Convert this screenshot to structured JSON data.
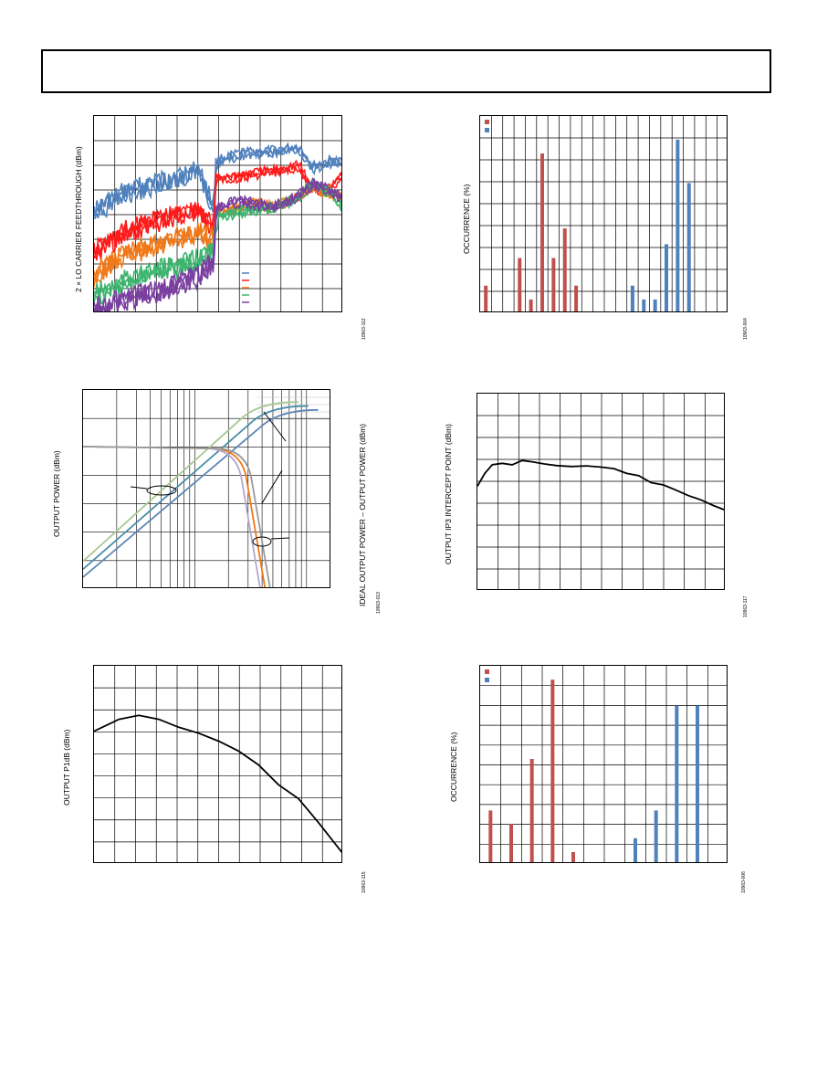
{
  "charts": {
    "lo_feedthrough": {
      "ylabel": "2 × LO CARRIER FEEDTHROUGH (dBm)",
      "fig_id": "10963-112"
    },
    "occurrence_top": {
      "ylabel": "OCCURRENCE (%)",
      "fig_id": "10963-004"
    },
    "output_power": {
      "ylabel_left": "OUTPUT POWER (dBm)",
      "ylabel_right": "IDEAL OUTPUT POWER – OUTPUT POWER (dBm)",
      "fig_id": "10963-013"
    },
    "oip3": {
      "ylabel": "OUTPUT IP3 INTERCEPT POINT (dBm)",
      "fig_id": "10963-117"
    },
    "p1db": {
      "ylabel": "OUTPUT P1dB (dBm)",
      "fig_id": "10963-115"
    },
    "occurrence_bottom": {
      "ylabel": "OCCURRENCE (%)",
      "fig_id": "10963-006"
    }
  },
  "colors": {
    "blue": "#4f81bd",
    "red": "#ff1a1a",
    "orange": "#f07818",
    "green": "#3cb46e",
    "purple": "#7a3fa0",
    "bar_red": "#c0504d",
    "bar_blue": "#4f81bd",
    "lavender": "#b4a8cc",
    "sage": "#a8c890",
    "teal": "#4a8fa8",
    "steel": "#5f86b8",
    "grey": "#9a9a9a",
    "black": "#000000"
  },
  "chart_data": [
    {
      "id": "lo_feedthrough",
      "type": "line",
      "ylabel": "2 × LO CARRIER FEEDTHROUGH (dBm)",
      "xlabel": "",
      "grid": true,
      "legend": "lower-right (entries unreadable)",
      "series": [
        {
          "color": "blue",
          "steps": [
            [
              0,
              0.48
            ],
            [
              0.12,
              0.38
            ],
            [
              0.25,
              0.33
            ],
            [
              0.42,
              0.27
            ],
            [
              0.48,
              0.45
            ],
            [
              0.49,
              0.22
            ],
            [
              0.6,
              0.18
            ],
            [
              0.72,
              0.17
            ],
            [
              0.82,
              0.15
            ],
            [
              0.88,
              0.25
            ],
            [
              0.95,
              0.22
            ],
            [
              1,
              0.23
            ]
          ]
        },
        {
          "color": "red",
          "steps": [
            [
              0,
              0.68
            ],
            [
              0.12,
              0.58
            ],
            [
              0.25,
              0.52
            ],
            [
              0.42,
              0.47
            ],
            [
              0.48,
              0.55
            ],
            [
              0.49,
              0.31
            ],
            [
              0.6,
              0.29
            ],
            [
              0.72,
              0.27
            ],
            [
              0.82,
              0.24
            ],
            [
              0.88,
              0.37
            ],
            [
              0.95,
              0.35
            ],
            [
              1,
              0.28
            ]
          ]
        },
        {
          "color": "orange",
          "steps": [
            [
              0,
              0.8
            ],
            [
              0.12,
              0.69
            ],
            [
              0.25,
              0.64
            ],
            [
              0.42,
              0.58
            ],
            [
              0.48,
              0.62
            ],
            [
              0.49,
              0.48
            ],
            [
              0.55,
              0.46
            ],
            [
              0.65,
              0.43
            ],
            [
              0.72,
              0.45
            ],
            [
              0.82,
              0.4
            ],
            [
              0.88,
              0.35
            ],
            [
              1,
              0.4
            ]
          ]
        },
        {
          "color": "green",
          "steps": [
            [
              0,
              0.9
            ],
            [
              0.12,
              0.83
            ],
            [
              0.25,
              0.78
            ],
            [
              0.42,
              0.72
            ],
            [
              0.48,
              0.67
            ],
            [
              0.49,
              0.5
            ],
            [
              0.6,
              0.47
            ],
            [
              0.72,
              0.45
            ],
            [
              0.8,
              0.42
            ],
            [
              0.88,
              0.33
            ],
            [
              0.95,
              0.38
            ],
            [
              1,
              0.45
            ]
          ]
        },
        {
          "color": "purple",
          "steps": [
            [
              0,
              0.97
            ],
            [
              0.12,
              0.92
            ],
            [
              0.25,
              0.88
            ],
            [
              0.42,
              0.8
            ],
            [
              0.48,
              0.72
            ],
            [
              0.49,
              0.45
            ],
            [
              0.6,
              0.42
            ],
            [
              0.72,
              0.45
            ],
            [
              0.8,
              0.41
            ],
            [
              0.88,
              0.33
            ],
            [
              1,
              0.4
            ]
          ]
        }
      ]
    },
    {
      "id": "occurrence_top",
      "type": "bar",
      "ylabel": "OCCURRENCE (%)",
      "grid": true,
      "legend": "top-left (entries unreadable)",
      "n_columns": 22,
      "series": [
        {
          "color": "bar_red",
          "bars": [
            [
              0,
              0.14
            ],
            [
              3,
              0.28
            ],
            [
              4,
              0.07
            ],
            [
              5,
              0.81
            ],
            [
              6,
              0.28
            ],
            [
              7,
              0.43
            ],
            [
              8,
              0.14
            ]
          ]
        },
        {
          "color": "bar_blue",
          "bars": [
            [
              13,
              0.14
            ],
            [
              14,
              0.07
            ],
            [
              15,
              0.07
            ],
            [
              16,
              0.35
            ],
            [
              17,
              0.88
            ],
            [
              18,
              0.66
            ]
          ]
        }
      ]
    },
    {
      "id": "output_power",
      "type": "line",
      "ylabel": "OUTPUT POWER (dBm)",
      "y2label": "IDEAL OUTPUT POWER – OUTPUT POWER (dBm)",
      "xscale": "log",
      "grid": true,
      "series_power": [
        {
          "color": "sage",
          "x0": 0.0,
          "y0": 0.86,
          "x1": 0.72,
          "y1": 0.06
        },
        {
          "color": "teal",
          "x0": 0.0,
          "y0": 0.9,
          "x1": 0.76,
          "y1": 0.08
        },
        {
          "color": "steel",
          "x0": 0.0,
          "y0": 0.94,
          "x1": 0.8,
          "y1": 0.1
        }
      ],
      "series_compression": [
        {
          "color": "orange",
          "knee": 0.66
        },
        {
          "color": "lavender",
          "knee": 0.64
        },
        {
          "color": "grey",
          "knee": 0.68
        }
      ]
    },
    {
      "id": "oip3",
      "type": "line",
      "ylabel": "OUTPUT IP3 INTERCEPT POINT (dBm)",
      "grid": true,
      "series": [
        {
          "color": "black",
          "points": [
            [
              0,
              0.47
            ],
            [
              0.03,
              0.4
            ],
            [
              0.06,
              0.36
            ],
            [
              0.1,
              0.35
            ],
            [
              0.14,
              0.36
            ],
            [
              0.18,
              0.34
            ],
            [
              0.22,
              0.35
            ],
            [
              0.27,
              0.36
            ],
            [
              0.32,
              0.36
            ],
            [
              0.38,
              0.37
            ],
            [
              0.44,
              0.37
            ],
            [
              0.5,
              0.37
            ],
            [
              0.55,
              0.38
            ],
            [
              0.6,
              0.4
            ],
            [
              0.65,
              0.42
            ],
            [
              0.7,
              0.45
            ],
            [
              0.75,
              0.46
            ],
            [
              0.8,
              0.49
            ],
            [
              0.85,
              0.52
            ],
            [
              0.9,
              0.54
            ],
            [
              0.95,
              0.57
            ],
            [
              1,
              0.59
            ]
          ]
        }
      ]
    },
    {
      "id": "p1db",
      "type": "line",
      "ylabel": "OUTPUT P1dB (dBm)",
      "grid": true,
      "series": [
        {
          "color": "black",
          "points": [
            [
              0,
              0.33
            ],
            [
              0.1,
              0.27
            ],
            [
              0.18,
              0.25
            ],
            [
              0.26,
              0.27
            ],
            [
              0.34,
              0.31
            ],
            [
              0.42,
              0.34
            ],
            [
              0.5,
              0.38
            ],
            [
              0.58,
              0.43
            ],
            [
              0.66,
              0.5
            ],
            [
              0.74,
              0.6
            ],
            [
              0.82,
              0.67
            ],
            [
              0.9,
              0.79
            ],
            [
              1,
              0.95
            ]
          ]
        }
      ]
    },
    {
      "id": "occurrence_bottom",
      "type": "bar",
      "ylabel": "OCCURRENCE (%)",
      "grid": true,
      "legend": "top-left (entries unreadable)",
      "n_columns": 12,
      "series": [
        {
          "color": "bar_red",
          "bars": [
            [
              0,
              0.27
            ],
            [
              1,
              0.2
            ],
            [
              2,
              0.53
            ],
            [
              3,
              0.93
            ],
            [
              4,
              0.06
            ]
          ]
        },
        {
          "color": "bar_blue",
          "bars": [
            [
              7,
              0.13
            ],
            [
              8,
              0.27
            ],
            [
              9,
              0.8
            ],
            [
              10,
              0.8
            ]
          ]
        }
      ]
    }
  ]
}
